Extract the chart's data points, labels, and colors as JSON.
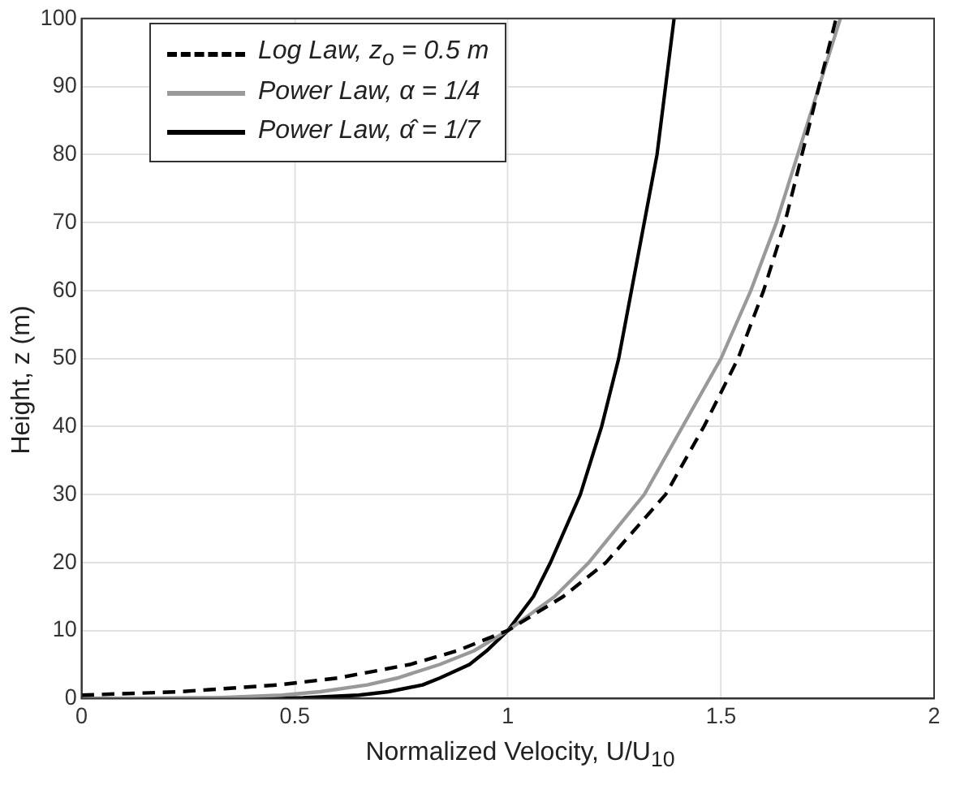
{
  "chart_data": {
    "type": "line",
    "xlabel": "Normalized Velocity,  U/U$_{10}$",
    "ylabel": "Height,  z  (m)",
    "xlim": [
      0,
      2
    ],
    "xticks": [
      0,
      0.5,
      1,
      1.5,
      2
    ],
    "ylim": [
      0,
      100
    ],
    "yticks": [
      0,
      10,
      20,
      30,
      40,
      50,
      60,
      70,
      80,
      90,
      100
    ],
    "grid": true,
    "legend": "top left",
    "marker": "none",
    "series": [
      {
        "name": "Log Law, z$_{o}$ = 0.5 m",
        "color": "#000000",
        "line_style": "dashed",
        "x": [
          0,
          0.23,
          0.46,
          0.6,
          0.77,
          0.88,
          1.0,
          1.13,
          1.23,
          1.37,
          1.46,
          1.54,
          1.6,
          1.65,
          1.69,
          1.73,
          1.77
        ],
        "values": [
          0.5,
          1,
          2,
          3,
          5,
          7,
          10,
          15,
          20,
          30,
          40,
          50,
          60,
          70,
          80,
          90,
          100
        ]
      },
      {
        "name": "Power Law, α = 1/4",
        "color": "#999999",
        "line_style": "solid",
        "x": [
          0,
          0.32,
          0.47,
          0.56,
          0.67,
          0.74,
          0.84,
          0.92,
          1.0,
          1.11,
          1.19,
          1.32,
          1.41,
          1.5,
          1.57,
          1.63,
          1.68,
          1.73,
          1.78
        ],
        "values": [
          0,
          0.1,
          0.5,
          1,
          2,
          3,
          5,
          7,
          10,
          15,
          20,
          30,
          40,
          50,
          60,
          70,
          80,
          90,
          100
        ]
      },
      {
        "name": "Power Law, α̂ = 1/7",
        "color": "#000000",
        "line_style": "solid",
        "x": [
          0,
          0.52,
          0.65,
          0.72,
          0.8,
          0.84,
          0.91,
          0.95,
          1.0,
          1.06,
          1.1,
          1.17,
          1.22,
          1.26,
          1.29,
          1.32,
          1.35,
          1.37,
          1.39
        ],
        "values": [
          0,
          0.1,
          0.5,
          1,
          2,
          3,
          5,
          7,
          10,
          15,
          20,
          30,
          40,
          50,
          60,
          70,
          80,
          90,
          100
        ]
      }
    ]
  }
}
